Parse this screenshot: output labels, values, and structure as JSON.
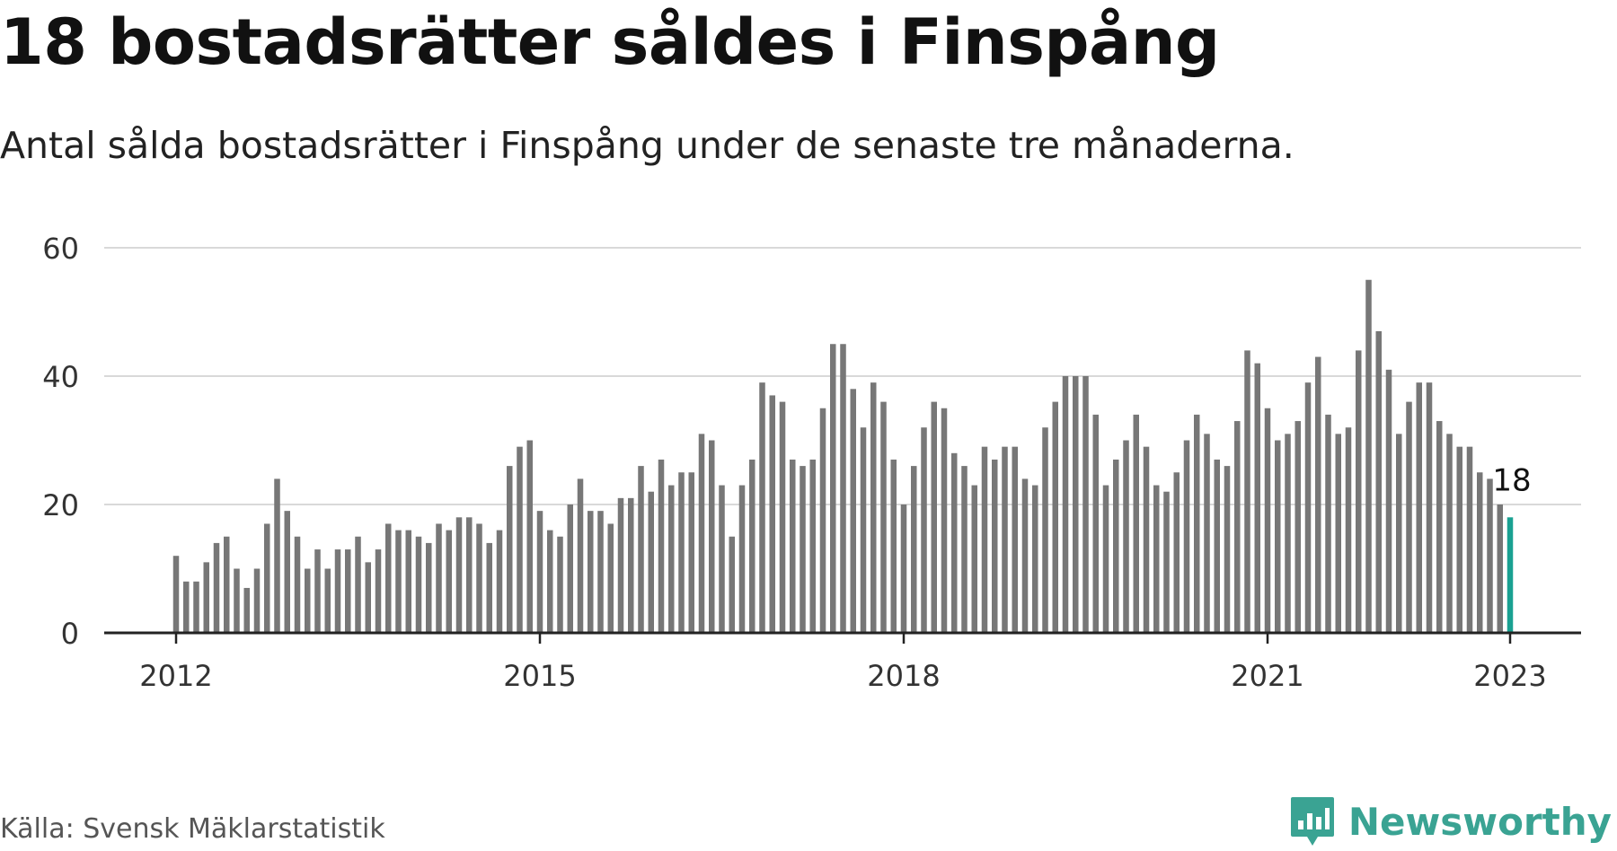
{
  "header": {
    "title": "18 bostadsrätter såldes i Finspång",
    "subtitle": "Antal sålda bostadsrätter i Finspång under de senaste tre månaderna."
  },
  "footer": {
    "source": "Källa: Svensk Mäklarstatistik",
    "brand": "Newsworthy"
  },
  "colors": {
    "bar": "#777777",
    "highlight": "#1aa192",
    "brand": "#3aa393"
  },
  "chart_data": {
    "type": "bar",
    "xlabel": "",
    "ylabel": "",
    "ylim": [
      0,
      60
    ],
    "yticks": [
      "0",
      "20",
      "40",
      "60"
    ],
    "xticks": [
      "2012",
      "2015",
      "2018",
      "2021",
      "2023"
    ],
    "grid": true,
    "start_month": "2012-01",
    "series": [
      {
        "values": [
          12,
          8,
          8,
          11,
          14,
          15,
          10,
          7,
          10,
          17,
          24,
          19,
          15,
          10,
          13,
          10,
          13,
          13,
          15,
          11,
          13,
          17,
          16,
          16,
          15,
          14,
          17,
          16,
          18,
          18,
          17,
          14,
          16,
          26,
          29,
          30,
          19,
          16,
          15,
          20,
          24,
          19,
          19,
          17,
          21,
          21,
          26,
          22,
          27,
          23,
          25,
          25,
          31,
          30,
          23,
          15,
          23,
          27,
          39,
          37,
          36,
          27,
          26,
          27,
          35,
          45,
          45,
          38,
          32,
          39,
          36,
          27,
          20,
          26,
          32,
          36,
          35,
          28,
          26,
          23,
          29,
          27,
          29,
          29,
          24,
          23,
          32,
          36,
          40,
          40,
          40,
          34,
          23,
          27,
          30,
          34,
          29,
          23,
          22,
          25,
          30,
          34,
          31,
          27,
          26,
          33,
          44,
          42,
          35,
          30,
          31,
          33,
          39,
          43,
          34,
          31,
          32,
          44,
          55,
          47,
          41,
          31,
          36,
          39,
          39,
          33,
          31,
          29,
          29,
          25,
          24,
          20,
          18
        ]
      }
    ],
    "highlight": {
      "label": "18",
      "value": 18
    }
  }
}
